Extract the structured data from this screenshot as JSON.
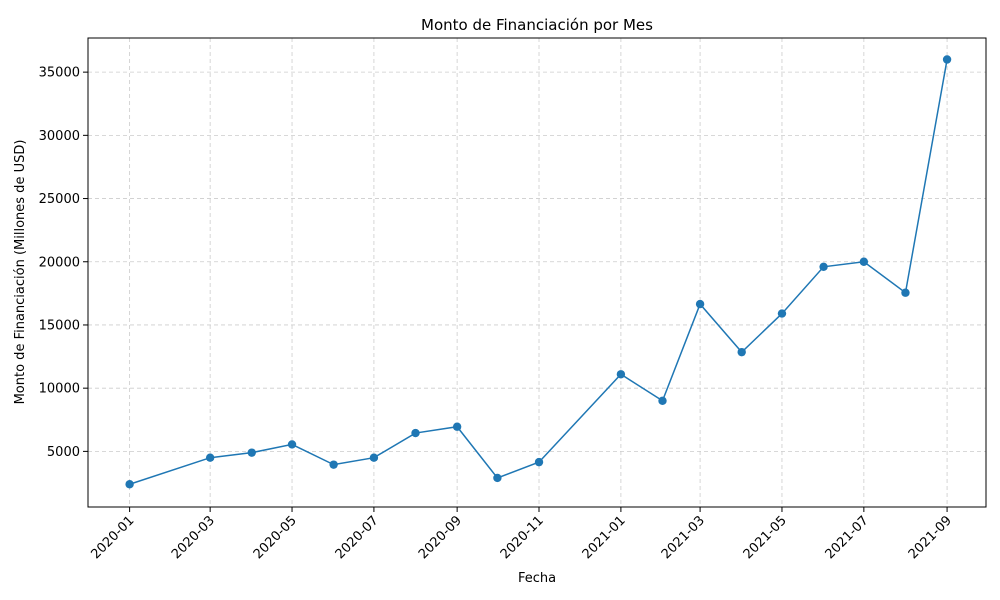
{
  "chart_data": {
    "type": "line",
    "title": "Monto de Financiación por Mes",
    "xlabel": "Fecha",
    "ylabel": "Monto de Financiación (Millones de USD)",
    "x_ticks": [
      "2020-01",
      "2020-03",
      "2020-05",
      "2020-07",
      "2020-09",
      "2020-11",
      "2021-01",
      "2021-03",
      "2021-05",
      "2021-07",
      "2021-09"
    ],
    "y_ticks": [
      5000,
      10000,
      15000,
      20000,
      25000,
      30000,
      35000
    ],
    "ylim": [
      600,
      37700
    ],
    "xlim": [
      "2019-12-01",
      "2021-09-30"
    ],
    "grid": true,
    "color": "#1f77b4",
    "series": [
      {
        "x": [
          "2020-01",
          "2020-03",
          "2020-04",
          "2020-05",
          "2020-06",
          "2020-07",
          "2020-08",
          "2020-09",
          "2020-10",
          "2020-11",
          "2021-01",
          "2021-02",
          "2021-03",
          "2021-04",
          "2021-05",
          "2021-06",
          "2021-07",
          "2021-08",
          "2021-09"
        ],
        "values": [
          2400,
          4500,
          4900,
          5550,
          3950,
          4500,
          6450,
          6950,
          2900,
          4150,
          11100,
          9000,
          16650,
          12850,
          15900,
          19600,
          20000,
          17550,
          36000
        ]
      }
    ]
  }
}
